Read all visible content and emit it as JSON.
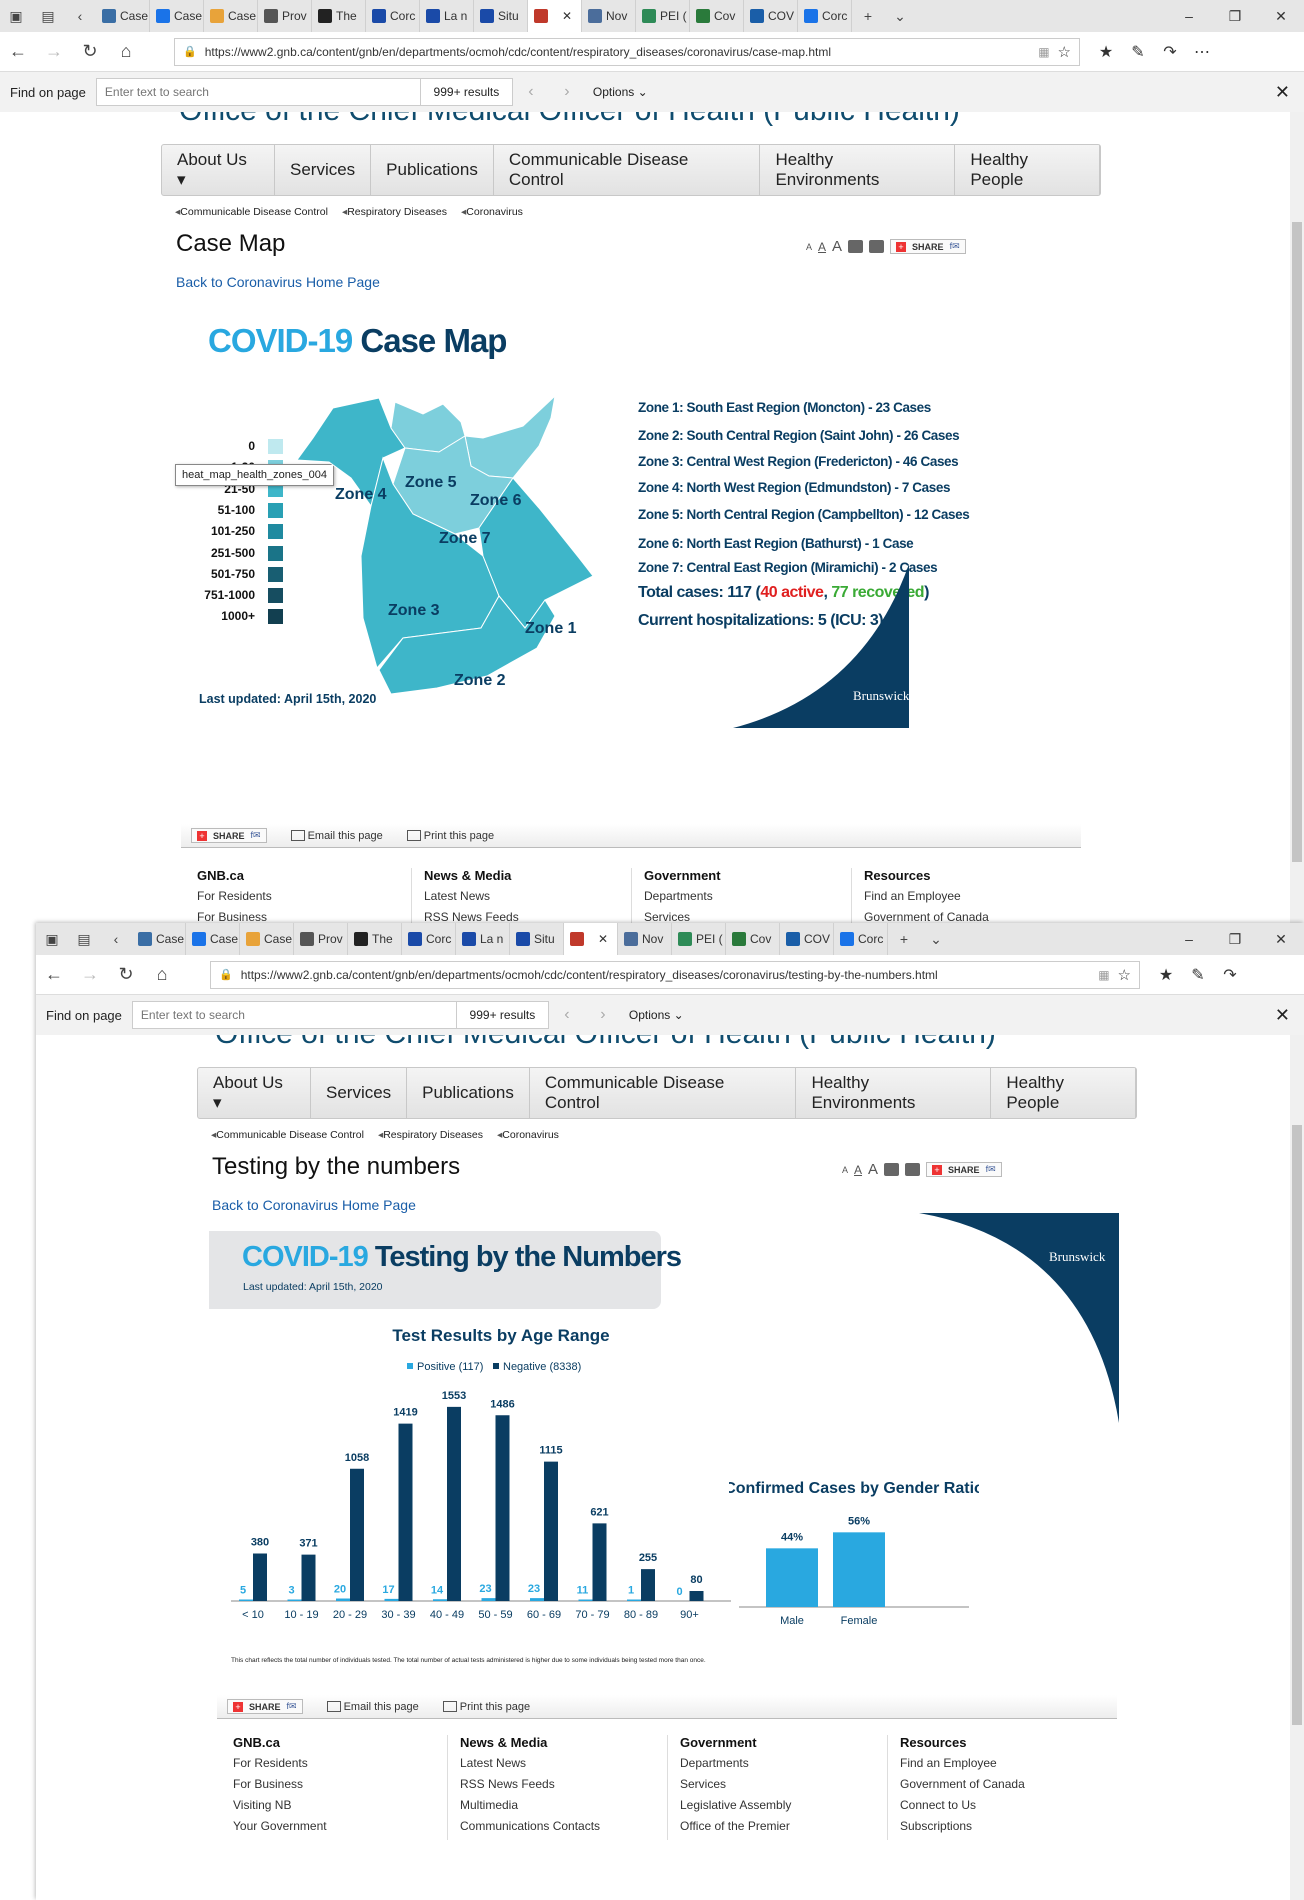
{
  "browser1": {
    "tabs": [
      "Case",
      "Case",
      "Case",
      "Prov",
      "The",
      "Corc",
      "La n",
      "Situ",
      "",
      "Nov",
      "PEI (",
      "Cov",
      "COV",
      "Corc"
    ],
    "url": "https://www2.gnb.ca/content/gnb/en/departments/ocmoh/cdc/content/respiratory_diseases/coronavirus/case-map.html",
    "find_label": "Find on page",
    "find_placeholder": "Enter text to search",
    "find_results": "999+ results",
    "find_options": "Options"
  },
  "browser2": {
    "tabs": [
      "Case",
      "Case",
      "Case",
      "Prov",
      "The",
      "Corc",
      "La n",
      "Situ",
      "",
      "Nov",
      "PEI (",
      "Cov",
      "COV",
      "Corc"
    ],
    "url": "https://www2.gnb.ca/content/gnb/en/departments/ocmoh/cdc/content/respiratory_diseases/coronavirus/testing-by-the-numbers.html",
    "find_label": "Find on page",
    "find_placeholder": "Enter text to search",
    "find_results": "999+ results",
    "find_options": "Options"
  },
  "site": {
    "header_title": "Office of the Chief Medical Officer of Health (Public Health)",
    "nav": [
      "About Us ▾",
      "Services",
      "Publications",
      "Communicable Disease Control",
      "Healthy Environments",
      "Healthy People"
    ],
    "crumbs": [
      "Communicable Disease Control",
      "Respiratory Diseases",
      "Coronavirus"
    ],
    "back_link": "Back to Coronavirus Home Page",
    "share": "SHARE",
    "email": "Email this page",
    "print": "Print this page",
    "footer": {
      "col1_title": "GNB.ca",
      "col1": [
        "For Residents",
        "For Business",
        "Visiting NB",
        "Your Government"
      ],
      "col2_title": "News & Media",
      "col2": [
        "Latest News",
        "RSS News Feeds",
        "Multimedia",
        "Communications Contacts"
      ],
      "col3_title": "Government",
      "col3": [
        "Departments",
        "Services",
        "Legislative Assembly",
        "Office of the Premier"
      ],
      "col4_title": "Resources",
      "col4": [
        "Find an Employee",
        "Government of Canada",
        "Connect to Us",
        "Subscriptions"
      ]
    }
  },
  "casemap": {
    "page_title": "Case Map",
    "heading_a": "COVID-19",
    "heading_b": "Case Map",
    "legend": [
      "0",
      "1-20",
      "21-50",
      "51-100",
      "101-250",
      "251-500",
      "501-750",
      "751-1000",
      "1000+"
    ],
    "tooltip": "heat_map_health_zones_004",
    "zones_labels": [
      "Zone 1",
      "Zone 2",
      "Zone 3",
      "Zone 4",
      "Zone 5",
      "Zone 6",
      "Zone 7"
    ],
    "zone_lines": [
      "Zone 1: South East Region (Moncton) - 23 Cases",
      "Zone 2: South Central Region (Saint John) - 26 Cases",
      "Zone 3: Central West Region (Fredericton) - 46 Cases",
      "Zone 4: North West Region (Edmundston) - 7 Cases",
      "Zone 5: North Central Region (Campbellton) - 12 Cases",
      "Zone 6: North East Region (Bathurst) - 1 Case",
      "Zone 7: Central East Region (Miramichi) - 2 Cases"
    ],
    "total_prefix": "Total cases: 117 (",
    "total_active": "40 active",
    "total_sep": ", ",
    "total_recovered": "77 recovered",
    "total_suffix": ")",
    "hospital": "Current hospitalizations: 5 (ICU: 3)",
    "updated": "Last updated: April 15th, 2020",
    "logo": "Brunswick",
    "colors": {
      "zone_light": "#7dcfdc",
      "zone_mid": "#3eb6c9",
      "navy": "#0a3d62",
      "red": "#e02020",
      "green": "#3aaa35"
    }
  },
  "testing": {
    "page_title": "Testing by the numbers",
    "heading_a": "COVID-19",
    "heading_b": "Testing by the Numbers",
    "updated": "Last updated: April 15th, 2020",
    "logo": "Brunswick",
    "note": "This chart reflects the total number of individuals tested. The total number of actual tests administered is higher due to some individuals being tested more than once."
  },
  "chart_data": [
    {
      "type": "bar",
      "title": "Test Results by Age Range",
      "categories": [
        "< 10",
        "10 - 19",
        "20 - 29",
        "30 - 39",
        "40 - 49",
        "50 - 59",
        "60 - 69",
        "70 - 79",
        "80 - 89",
        "90+"
      ],
      "series": [
        {
          "name": "Positive (117)",
          "color": "#29a8e0",
          "values": [
            5,
            3,
            20,
            17,
            14,
            23,
            23,
            11,
            1,
            0
          ]
        },
        {
          "name": "Negative (8338)",
          "color": "#0a3d62",
          "values": [
            380,
            371,
            1058,
            1419,
            1553,
            1486,
            1115,
            621,
            255,
            80
          ]
        }
      ],
      "ylim": [
        0,
        1600
      ],
      "legend": "top"
    },
    {
      "type": "bar",
      "title": "Confirmed Cases by Gender Ratio",
      "categories": [
        "Male",
        "Female"
      ],
      "values": [
        44,
        56
      ],
      "labels": [
        "44%",
        "56%"
      ],
      "color": "#29a8e0",
      "ylim": [
        0,
        60
      ]
    }
  ]
}
